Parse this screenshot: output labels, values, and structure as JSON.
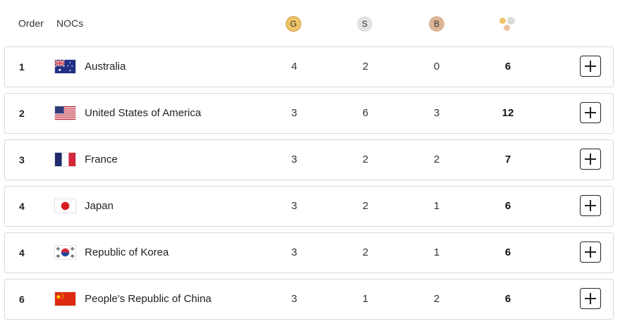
{
  "header": {
    "order_label": "Order",
    "noc_label": "NOCs",
    "gold_label": "G",
    "silver_label": "S",
    "bronze_label": "B",
    "total_icon": "medals-total-icon"
  },
  "rows": [
    {
      "rank": "1",
      "country": "Australia",
      "flag": "australia-flag-icon",
      "gold": "4",
      "silver": "2",
      "bronze": "0",
      "total": "6"
    },
    {
      "rank": "2",
      "country": "United States of America",
      "flag": "usa-flag-icon",
      "gold": "3",
      "silver": "6",
      "bronze": "3",
      "total": "12"
    },
    {
      "rank": "3",
      "country": "France",
      "flag": "france-flag-icon",
      "gold": "3",
      "silver": "2",
      "bronze": "2",
      "total": "7"
    },
    {
      "rank": "4",
      "country": "Japan",
      "flag": "japan-flag-icon",
      "gold": "3",
      "silver": "2",
      "bronze": "1",
      "total": "6"
    },
    {
      "rank": "4",
      "country": "Republic of Korea",
      "flag": "korea-flag-icon",
      "gold": "3",
      "silver": "2",
      "bronze": "1",
      "total": "6"
    },
    {
      "rank": "6",
      "country": "People's Republic of China",
      "flag": "china-flag-icon",
      "gold": "3",
      "silver": "1",
      "bronze": "2",
      "total": "6"
    }
  ],
  "colors": {
    "gold_medal": "#f0c468",
    "silver_medal": "#e3e3e3",
    "bronze_medal": "#ddb594",
    "row_border": "#d9d9d9"
  }
}
